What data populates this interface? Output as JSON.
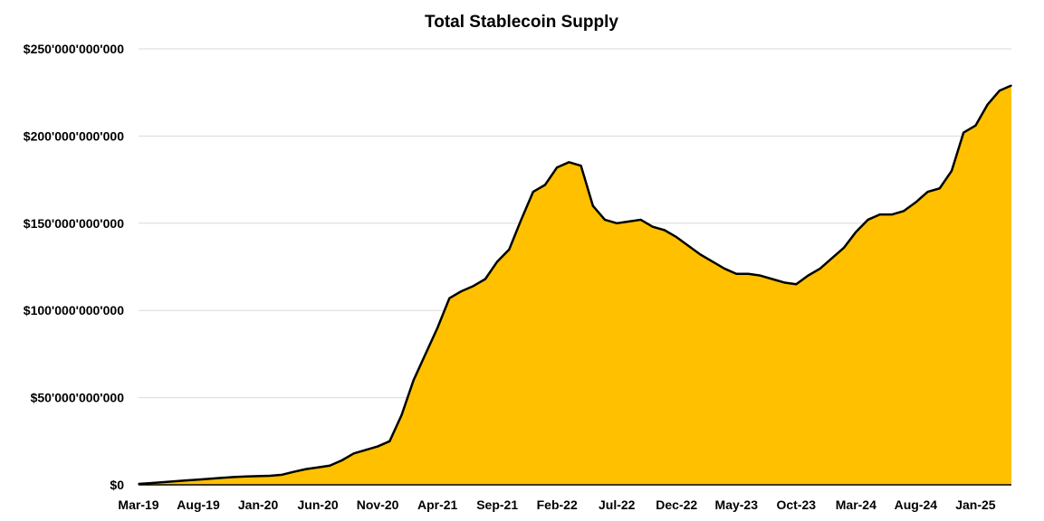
{
  "chart_data": {
    "type": "area",
    "title": "Total Stablecoin Supply",
    "xlabel": "",
    "ylabel": "",
    "ylim": [
      0,
      250000000000
    ],
    "yticks": [
      {
        "value": 0,
        "label": "$0"
      },
      {
        "value": 50000000000,
        "label": "$50'000'000'000"
      },
      {
        "value": 100000000000,
        "label": "$100'000'000'000"
      },
      {
        "value": 150000000000,
        "label": "$150'000'000'000"
      },
      {
        "value": 200000000000,
        "label": "$200'000'000'000"
      },
      {
        "value": 250000000000,
        "label": "$250'000'000'000"
      }
    ],
    "xlim": [
      "2019-03",
      "2025-04"
    ],
    "xticks": [
      "Mar-19",
      "Aug-19",
      "Jan-20",
      "Jun-20",
      "Nov-20",
      "Apr-21",
      "Sep-21",
      "Feb-22",
      "Jul-22",
      "Dec-22",
      "May-23",
      "Oct-23",
      "Mar-24",
      "Aug-24",
      "Jan-25"
    ],
    "fill_color": "#ffc000",
    "line_color": "#000000",
    "grid": true,
    "series": [
      {
        "points": [
          [
            "2019-03",
            0.5
          ],
          [
            "2019-04",
            1.0
          ],
          [
            "2019-05",
            1.5
          ],
          [
            "2019-06",
            2.0
          ],
          [
            "2019-07",
            2.5
          ],
          [
            "2019-08",
            3.0
          ],
          [
            "2019-09",
            3.5
          ],
          [
            "2019-10",
            4.0
          ],
          [
            "2019-11",
            4.5
          ],
          [
            "2019-12",
            4.8
          ],
          [
            "2020-01",
            5.0
          ],
          [
            "2020-02",
            5.2
          ],
          [
            "2020-03",
            5.8
          ],
          [
            "2020-04",
            7.5
          ],
          [
            "2020-05",
            9.0
          ],
          [
            "2020-06",
            10.0
          ],
          [
            "2020-07",
            11.0
          ],
          [
            "2020-08",
            14.0
          ],
          [
            "2020-09",
            18.0
          ],
          [
            "2020-10",
            20.0
          ],
          [
            "2020-11",
            22.0
          ],
          [
            "2020-12",
            25.0
          ],
          [
            "2021-01",
            40.0
          ],
          [
            "2021-02",
            60.0
          ],
          [
            "2021-03",
            75.0
          ],
          [
            "2021-04",
            90.0
          ],
          [
            "2021-05",
            107.0
          ],
          [
            "2021-06",
            111.0
          ],
          [
            "2021-07",
            114.0
          ],
          [
            "2021-08",
            118.0
          ],
          [
            "2021-09",
            128.0
          ],
          [
            "2021-10",
            135.0
          ],
          [
            "2021-11",
            152.0
          ],
          [
            "2021-12",
            168.0
          ],
          [
            "2022-01",
            172.0
          ],
          [
            "2022-02",
            182.0
          ],
          [
            "2022-03",
            185.0
          ],
          [
            "2022-04",
            183.0
          ],
          [
            "2022-05",
            160.0
          ],
          [
            "2022-06",
            152.0
          ],
          [
            "2022-07",
            150.0
          ],
          [
            "2022-08",
            151.0
          ],
          [
            "2022-09",
            152.0
          ],
          [
            "2022-10",
            148.0
          ],
          [
            "2022-11",
            146.0
          ],
          [
            "2022-12",
            142.0
          ],
          [
            "2023-01",
            137.0
          ],
          [
            "2023-02",
            132.0
          ],
          [
            "2023-03",
            128.0
          ],
          [
            "2023-04",
            124.0
          ],
          [
            "2023-05",
            121.0
          ],
          [
            "2023-06",
            121.0
          ],
          [
            "2023-07",
            120.0
          ],
          [
            "2023-08",
            118.0
          ],
          [
            "2023-09",
            116.0
          ],
          [
            "2023-10",
            115.0
          ],
          [
            "2023-11",
            120.0
          ],
          [
            "2023-12",
            124.0
          ],
          [
            "2024-01",
            130.0
          ],
          [
            "2024-02",
            136.0
          ],
          [
            "2024-03",
            145.0
          ],
          [
            "2024-04",
            152.0
          ],
          [
            "2024-05",
            155.0
          ],
          [
            "2024-06",
            155.0
          ],
          [
            "2024-07",
            157.0
          ],
          [
            "2024-08",
            162.0
          ],
          [
            "2024-09",
            168.0
          ],
          [
            "2024-10",
            170.0
          ],
          [
            "2024-11",
            180.0
          ],
          [
            "2024-12",
            202.0
          ],
          [
            "2025-01",
            206.0
          ],
          [
            "2025-02",
            218.0
          ],
          [
            "2025-03",
            226.0
          ],
          [
            "2025-04",
            229.0
          ]
        ],
        "value_unit": "billion USD"
      }
    ]
  }
}
